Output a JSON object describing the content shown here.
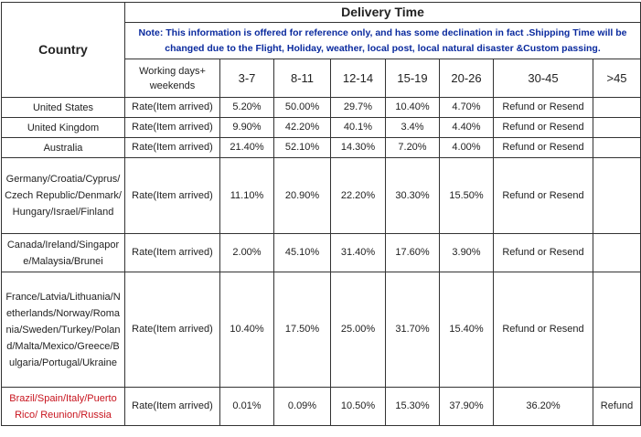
{
  "header": {
    "country": "Country",
    "delivery_time": "Delivery Time",
    "note": "Note: This information is offered for reference only, and has some declination in fact .Shipping Time will be changed due to the Flight, Holiday, weather, local post, local natural disaster &Custom passing."
  },
  "columns": [
    "Working days+ weekends",
    "3-7",
    "8-11",
    "12-14",
    "15-19",
    "20-26",
    "30-45",
    ">45"
  ],
  "rows": [
    {
      "country": "United States",
      "rate": "Rate(Item arrived)",
      "values": [
        "5.20%",
        "50.00%",
        "29.7%",
        "10.40%",
        "4.70%",
        "Refund or Resend",
        ""
      ]
    },
    {
      "country": "United Kingdom",
      "rate": "Rate(Item arrived)",
      "values": [
        "9.90%",
        "42.20%",
        "40.1%",
        "3.4%",
        "4.40%",
        "Refund or Resend",
        ""
      ]
    },
    {
      "country": "Australia",
      "rate": "Rate(Item arrived)",
      "values": [
        "21.40%",
        "52.10%",
        "14.30%",
        "7.20%",
        "4.00%",
        "Refund or Resend",
        ""
      ]
    },
    {
      "country": "Germany/Croatia/Cyprus/Czech Republic/Denmark/Hungary/Israel/Finland",
      "rate": "Rate(Item arrived)",
      "values": [
        "11.10%",
        "20.90%",
        "22.20%",
        "30.30%",
        "15.50%",
        "Refund or Resend",
        ""
      ]
    },
    {
      "country": "Canada/Ireland/Singapore/Malaysia/Brunei",
      "rate": "Rate(Item arrived)",
      "values": [
        "2.00%",
        "45.10%",
        "31.40%",
        "17.60%",
        "3.90%",
        "Refund or Resend",
        ""
      ]
    },
    {
      "country": "France/Latvia/Lithuania/Netherlands/Norway/Romania/Sweden/Turkey/Poland/Malta/Mexico/Greece/Bulgaria/Portugal/Ukraine",
      "rate": "Rate(Item arrived)",
      "values": [
        "10.40%",
        "17.50%",
        "25.00%",
        "31.70%",
        "15.40%",
        "Refund or Resend",
        ""
      ]
    },
    {
      "country": "Brazil/Spain/Italy/Puerto Rico/ Reunion/Russia",
      "rate": "Rate(Item arrived)",
      "values": [
        "0.01%",
        "0.09%",
        "10.50%",
        "15.30%",
        "37.90%",
        "36.20%",
        "Refund"
      ]
    }
  ],
  "colors": {
    "note_text": "#0a2a9e",
    "highlight_country": "#c8141e",
    "border": "#333333"
  }
}
